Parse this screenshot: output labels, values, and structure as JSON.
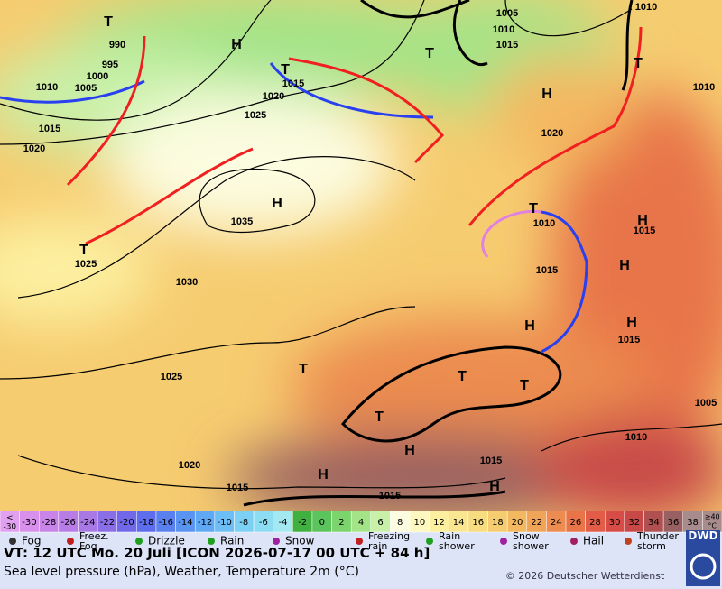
{
  "map": {
    "labels": [
      "T",
      "990",
      "995",
      "1000",
      "1005",
      "1010",
      "1015",
      "1020",
      "H",
      "T",
      "1015",
      "1020",
      "1025",
      "H",
      "1035",
      "T",
      "1025",
      "1030",
      "1025",
      "1020",
      "1015",
      "1015",
      "H",
      "H",
      "H",
      "1015",
      "T",
      "T",
      "T",
      "T",
      "H",
      "1015",
      "H",
      "H",
      "1015",
      "1010",
      "1005",
      "1010",
      "1020",
      "H",
      "T",
      "1005",
      "1010",
      "1015",
      "1010",
      "T",
      "T",
      "1010",
      "H",
      "1015"
    ]
  },
  "color_scale": {
    "low_label": [
      "<",
      "-30"
    ],
    "ticks": [
      -30,
      -28,
      -26,
      -24,
      -22,
      -20,
      -18,
      -16,
      -14,
      -12,
      -10,
      -8,
      -6,
      -4,
      -2,
      0,
      2,
      4,
      6,
      8,
      10,
      12,
      14,
      16,
      18,
      20,
      22,
      24,
      26,
      28,
      30,
      32,
      34,
      36,
      38
    ],
    "high_label": [
      "≥40",
      "°C"
    ],
    "colors": [
      "#e2a0f0",
      "#d890ec",
      "#c884e8",
      "#b87ce6",
      "#a878e4",
      "#8a6ee8",
      "#7068e8",
      "#5e6cee",
      "#5a80f0",
      "#5a94f2",
      "#5ea8f4",
      "#6cbef4",
      "#7cd0f4",
      "#8cdcf2",
      "#a4e8f2",
      "#40b040",
      "#5cc45c",
      "#7cd46c",
      "#a4e488",
      "#c8f0a8",
      "#fcfce0",
      "#fcf8c0",
      "#fcf0a0",
      "#fae690",
      "#f8dc80",
      "#f6cc70",
      "#f4b860",
      "#f0a458",
      "#ec8c50",
      "#e87448",
      "#e25c48",
      "#d84c48",
      "#c84848",
      "#b05050",
      "#986060",
      "#a88c8c"
    ]
  },
  "legend": [
    "Fog",
    "Freez. Fog",
    "Drizzle",
    "Rain",
    "Snow",
    "Freezing rain",
    "Rain shower",
    "Snow shower",
    "Hail",
    "Thunder storm"
  ],
  "footer": {
    "valid_time": "VT: 12 UTC Mo.  20 Juli [ICON 2026-07-17  00 UTC + 84 h]",
    "description": "Sea level pressure (hPa), Weather, Temperature 2m (°C)",
    "copyright": "© 2026 Deutscher Wetterdienst",
    "logo": "DWD"
  }
}
